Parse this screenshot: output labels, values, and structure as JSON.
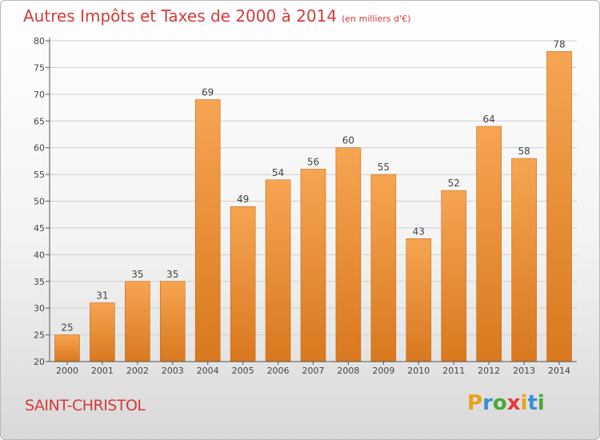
{
  "header": {
    "title": "Autres Impôts et Taxes de 2000 à 2014",
    "unit": "(en milliers d'€)"
  },
  "footer": {
    "city": "SAINT-CHRISTOL",
    "brand": "Proxiti"
  },
  "colors": {
    "title": "#d63a3a",
    "bar_light": "#f6a552",
    "bar_dark": "#d9781e",
    "brand_letters": [
      "#e8a317",
      "#3a8fd6",
      "#4aa83a",
      "#e23b3b",
      "#e8a317",
      "#3a8fd6",
      "#4aa83a"
    ]
  },
  "chart_data": {
    "type": "bar",
    "categories": [
      "2000",
      "2001",
      "2002",
      "2003",
      "2004",
      "2005",
      "2006",
      "2007",
      "2008",
      "2009",
      "2010",
      "2011",
      "2012",
      "2013",
      "2014"
    ],
    "values": [
      25,
      31,
      35,
      35,
      69,
      49,
      54,
      56,
      60,
      55,
      43,
      52,
      64,
      58,
      78
    ],
    "ylim": [
      20,
      80
    ],
    "yticks": [
      20,
      25,
      30,
      35,
      40,
      45,
      50,
      55,
      60,
      65,
      70,
      75,
      80
    ],
    "grid": true,
    "data_labels": true
  }
}
